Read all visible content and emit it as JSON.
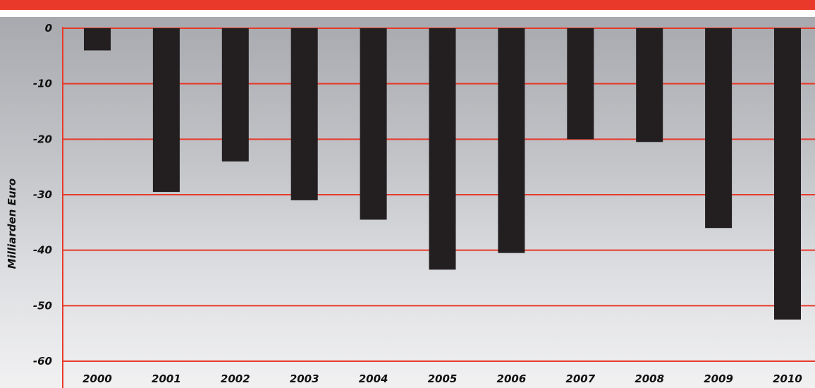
{
  "chart_data": {
    "type": "bar",
    "title": "",
    "xlabel": "",
    "ylabel": "Milliarden Euro",
    "ylim": [
      -60,
      0
    ],
    "yticks": [
      "0",
      "-10",
      "-20",
      "-30",
      "-40",
      "-50",
      "-60"
    ],
    "ytick_values": [
      0,
      -10,
      -20,
      -30,
      -40,
      -50,
      -60
    ],
    "grid": true,
    "categories": [
      "2000",
      "2001",
      "2002",
      "2003",
      "2004",
      "2005",
      "2006",
      "2007",
      "2008",
      "2009",
      "2010"
    ],
    "values": [
      -4,
      -29.5,
      -24,
      -31,
      -34.5,
      -43.5,
      -40.5,
      -20,
      -20.5,
      -36,
      -52.5
    ]
  },
  "colors": {
    "accent": "#e8392a",
    "bar": "#231f20",
    "gridline": "#e8392a"
  }
}
